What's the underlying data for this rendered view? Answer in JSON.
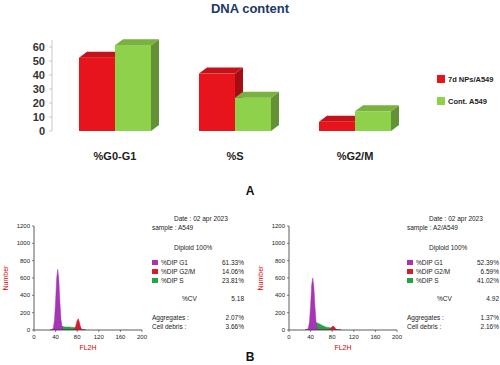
{
  "panel_labels": [
    "A",
    "B"
  ],
  "chart_data": [
    {
      "type": "bar",
      "title": "DNA content",
      "categories": [
        "%G0-G1",
        "%S",
        "%G2/M"
      ],
      "series": [
        {
          "name": "7d NPs/A549",
          "color": "#e8141b",
          "values": [
            52.39,
            41.02,
            6.59
          ]
        },
        {
          "name": "Cont. A549",
          "color": "#8ed14a",
          "values": [
            61.33,
            23.81,
            14.06
          ]
        }
      ],
      "ylim": [
        0,
        65
      ],
      "yticks": [
        0,
        10,
        20,
        30,
        40,
        50,
        60
      ],
      "legend": "right"
    },
    {
      "type": "area",
      "x": [
        30,
        32,
        34,
        36,
        38,
        40,
        42,
        44,
        46,
        48,
        50,
        52,
        54,
        56,
        58,
        60,
        62,
        64,
        66,
        68,
        70,
        72,
        74,
        76,
        78,
        80,
        82,
        84,
        86,
        88,
        90,
        92,
        94,
        96
      ],
      "xlim": [
        0,
        200
      ],
      "xticks": [
        0,
        40,
        80,
        120,
        160,
        200
      ],
      "ylim": [
        0,
        1200
      ],
      "yticks": [
        0,
        200,
        400,
        600,
        800,
        1000,
        1200
      ],
      "x_label": "FL2H",
      "y_label": "Number",
      "date": "Date : 02 apr 2023",
      "sample": "sample : A549",
      "ploidy": "Diploid 100%",
      "legend": "right",
      "series": [
        {
          "name": "%DIP G1",
          "share_label": "61.33%",
          "color": "#a535b5",
          "values": [
            0,
            0,
            5,
            30,
            120,
            330,
            600,
            700,
            580,
            320,
            120,
            35,
            8,
            0,
            0,
            0,
            0,
            0,
            0,
            0,
            0,
            0,
            0,
            0,
            0,
            0,
            0,
            0,
            0,
            0,
            0,
            0,
            0,
            0
          ]
        },
        {
          "name": "%DIP G2/M",
          "share_label": "14.06%",
          "color": "#d81b2a",
          "values": [
            0,
            0,
            0,
            0,
            0,
            0,
            0,
            0,
            0,
            0,
            0,
            0,
            0,
            0,
            0,
            0,
            0,
            0,
            0,
            0,
            0,
            0,
            5,
            20,
            60,
            110,
            130,
            90,
            40,
            12,
            3,
            0,
            0,
            0
          ]
        },
        {
          "name": "%DIP S",
          "share_label": "23.81%",
          "color": "#1fa83f",
          "values": [
            0,
            0,
            0,
            0,
            0,
            5,
            15,
            25,
            35,
            40,
            42,
            42,
            40,
            38,
            36,
            35,
            35,
            34,
            34,
            33,
            33,
            32,
            30,
            28,
            25,
            20,
            15,
            10,
            5,
            0,
            0,
            0,
            0,
            0
          ]
        }
      ],
      "stats": [
        {
          "name": "%CV",
          "label": "5.18"
        },
        {
          "name": "Aggregates :",
          "label": "2.07%"
        },
        {
          "name": "Cell debris :",
          "label": "3.66%"
        }
      ]
    },
    {
      "type": "area",
      "x": [
        30,
        32,
        34,
        36,
        38,
        40,
        42,
        44,
        46,
        48,
        50,
        52,
        54,
        56,
        58,
        60,
        62,
        64,
        66,
        68,
        70,
        72,
        74,
        76,
        78,
        80,
        82,
        84,
        86,
        88,
        90,
        92,
        94,
        96
      ],
      "xlim": [
        0,
        200
      ],
      "xticks": [
        0,
        40,
        80,
        120,
        160,
        200
      ],
      "ylim": [
        0,
        1200
      ],
      "yticks": [
        0,
        200,
        400,
        600,
        800,
        1000,
        1200
      ],
      "x_label": "FL2H",
      "y_label": "Number",
      "date": "Date : 02 apr 2023",
      "sample": "sample : A2/A549",
      "ploidy": "Diploid 100%",
      "legend": "right",
      "series": [
        {
          "name": "%DIP G1",
          "share_label": "52.39%",
          "color": "#a535b5",
          "values": [
            0,
            0,
            4,
            25,
            100,
            280,
            520,
            600,
            500,
            280,
            100,
            30,
            6,
            0,
            0,
            0,
            0,
            0,
            0,
            0,
            0,
            0,
            0,
            0,
            0,
            0,
            0,
            0,
            0,
            0,
            0,
            0,
            0,
            0
          ]
        },
        {
          "name": "%DIP G2/M",
          "share_label": "6.59%",
          "color": "#d81b2a",
          "values": [
            0,
            0,
            0,
            0,
            0,
            0,
            0,
            0,
            0,
            0,
            0,
            0,
            0,
            0,
            0,
            0,
            0,
            0,
            0,
            0,
            0,
            0,
            3,
            10,
            25,
            40,
            45,
            35,
            18,
            6,
            2,
            0,
            0,
            0
          ]
        },
        {
          "name": "%DIP S",
          "share_label": "41.02%",
          "color": "#1fa83f",
          "values": [
            0,
            0,
            0,
            0,
            0,
            8,
            30,
            55,
            75,
            85,
            85,
            82,
            78,
            72,
            65,
            58,
            52,
            45,
            40,
            35,
            32,
            30,
            28,
            26,
            24,
            20,
            15,
            10,
            5,
            0,
            0,
            0,
            0,
            0
          ]
        }
      ],
      "stats": [
        {
          "name": "%CV",
          "label": "4.92"
        },
        {
          "name": "Aggregates :",
          "label": "1.37%"
        },
        {
          "name": "Cell debris :",
          "label": "2.16%"
        }
      ]
    }
  ]
}
